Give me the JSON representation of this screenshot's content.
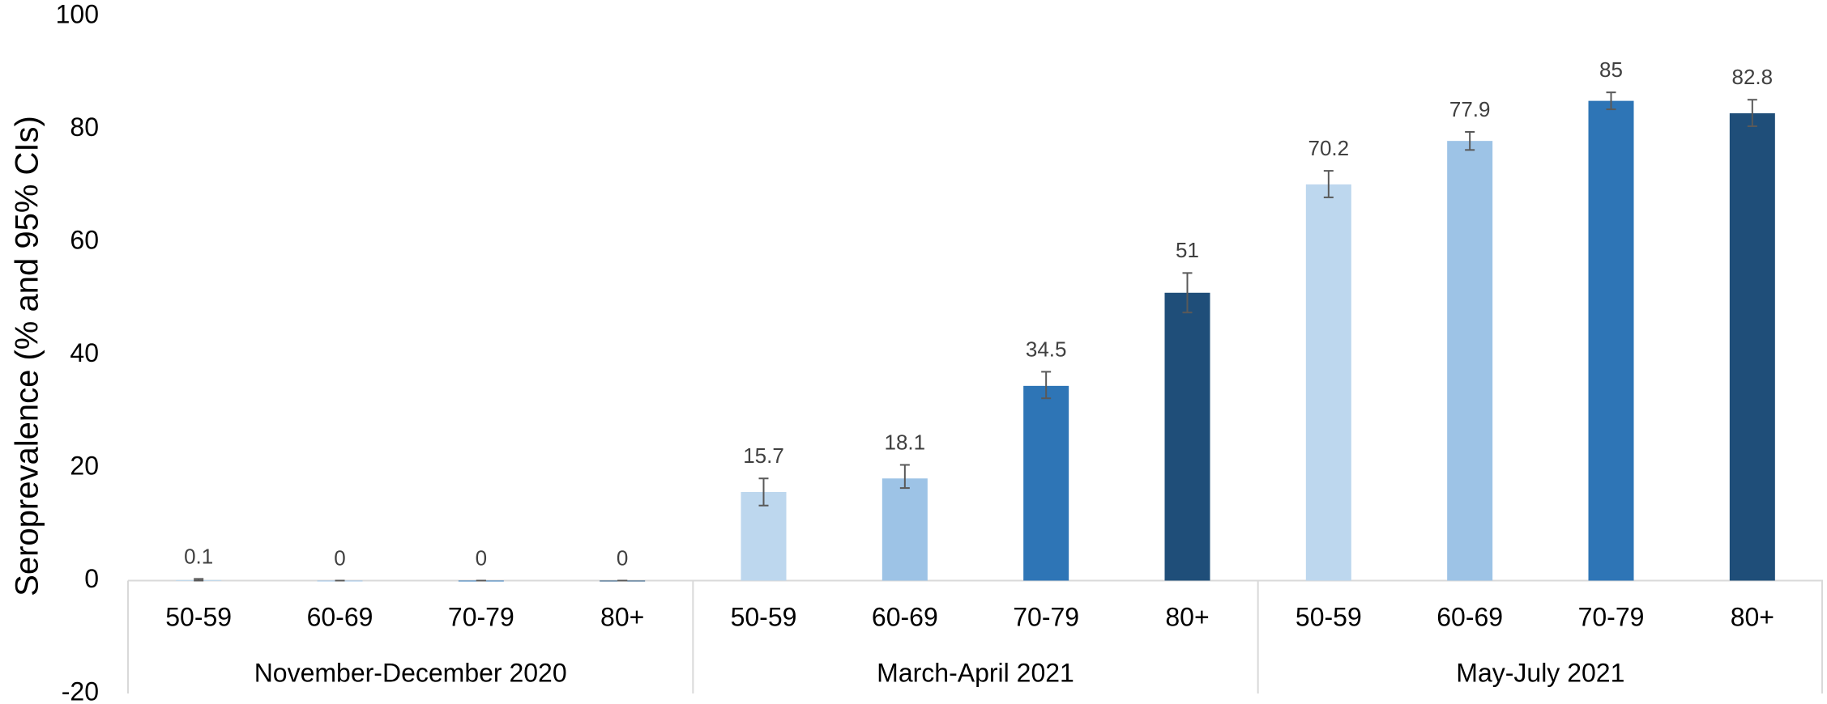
{
  "chart_data": {
    "type": "bar",
    "ylabel": "Seroprevalence (% and 95% CIs)",
    "ylim": [
      -20,
      100
    ],
    "yticks": [
      -20,
      0,
      20,
      40,
      60,
      80,
      100
    ],
    "grid": false,
    "colors": [
      "#bdd7ee",
      "#9dc3e6",
      "#2e75b6",
      "#1f4e79"
    ],
    "groups": [
      {
        "name": "November-December 2020",
        "categories": [
          "50-59",
          "60-69",
          "70-79",
          "80+"
        ],
        "values": [
          0.1,
          0,
          0,
          0
        ],
        "ci": [
          [
            0,
            0.3
          ],
          [
            0,
            0
          ],
          [
            0,
            0
          ],
          [
            0,
            0
          ]
        ]
      },
      {
        "name": "March-April 2021",
        "categories": [
          "50-59",
          "60-69",
          "70-79",
          "80+"
        ],
        "values": [
          15.7,
          18.1,
          34.5,
          51
        ],
        "ci": [
          [
            13.3,
            18.1
          ],
          [
            16.4,
            20.5
          ],
          [
            32.3,
            37
          ],
          [
            47.5,
            54.5
          ]
        ]
      },
      {
        "name": "May-July 2021",
        "categories": [
          "50-59",
          "60-69",
          "70-79",
          "80+"
        ],
        "values": [
          70.2,
          77.9,
          85,
          82.8
        ],
        "ci": [
          [
            67.9,
            72.6
          ],
          [
            76.3,
            79.5
          ],
          [
            83.5,
            86.5
          ],
          [
            80.5,
            85.2
          ]
        ]
      }
    ]
  }
}
